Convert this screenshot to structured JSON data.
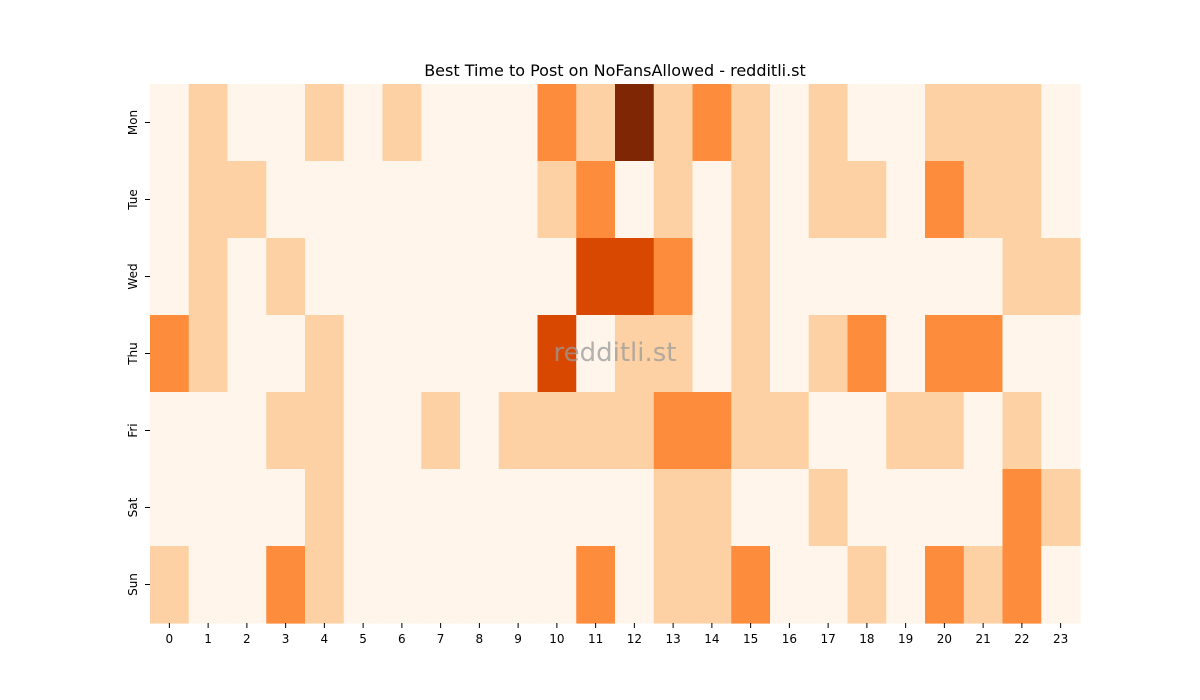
{
  "chart_data": {
    "type": "heatmap",
    "title": "Best Time to Post on NoFansAllowed - redditli.st",
    "watermark": "redditli.st",
    "xlabel": "",
    "ylabel": "",
    "x_categories": [
      "0",
      "1",
      "2",
      "3",
      "4",
      "5",
      "6",
      "7",
      "8",
      "9",
      "10",
      "11",
      "12",
      "13",
      "14",
      "15",
      "16",
      "17",
      "18",
      "19",
      "20",
      "21",
      "22",
      "23"
    ],
    "y_categories": [
      "Mon",
      "Tue",
      "Wed",
      "Thu",
      "Fri",
      "Sat",
      "Sun"
    ],
    "colormap": "Oranges",
    "color_levels": {
      "0": "#fff5eb",
      "1": "#fdd1a3",
      "2": "#fd8d3c",
      "3": "#d94801",
      "4": "#7f2704"
    },
    "values": [
      [
        0,
        1,
        0,
        0,
        1,
        0,
        1,
        0,
        0,
        0,
        2,
        1,
        4,
        1,
        2,
        1,
        0,
        1,
        0,
        0,
        1,
        1,
        1,
        0
      ],
      [
        0,
        1,
        1,
        0,
        0,
        0,
        0,
        0,
        0,
        0,
        1,
        2,
        0,
        1,
        0,
        1,
        0,
        1,
        1,
        0,
        2,
        1,
        1,
        0
      ],
      [
        0,
        1,
        0,
        1,
        0,
        0,
        0,
        0,
        0,
        0,
        0,
        3,
        3,
        2,
        0,
        1,
        0,
        0,
        0,
        0,
        0,
        0,
        1,
        1
      ],
      [
        2,
        1,
        0,
        0,
        1,
        0,
        0,
        0,
        0,
        0,
        3,
        0,
        1,
        1,
        0,
        1,
        0,
        1,
        2,
        0,
        2,
        2,
        0,
        0
      ],
      [
        0,
        0,
        0,
        1,
        1,
        0,
        0,
        1,
        0,
        1,
        1,
        1,
        1,
        2,
        2,
        1,
        1,
        0,
        0,
        1,
        1,
        0,
        1,
        0
      ],
      [
        0,
        0,
        0,
        0,
        1,
        0,
        0,
        0,
        0,
        0,
        0,
        0,
        0,
        1,
        1,
        0,
        0,
        1,
        0,
        0,
        0,
        0,
        2,
        1
      ],
      [
        1,
        0,
        0,
        2,
        1,
        0,
        0,
        0,
        0,
        0,
        0,
        2,
        0,
        1,
        1,
        2,
        0,
        0,
        1,
        0,
        2,
        1,
        2,
        0
      ]
    ],
    "legend": "none",
    "grid": false
  }
}
